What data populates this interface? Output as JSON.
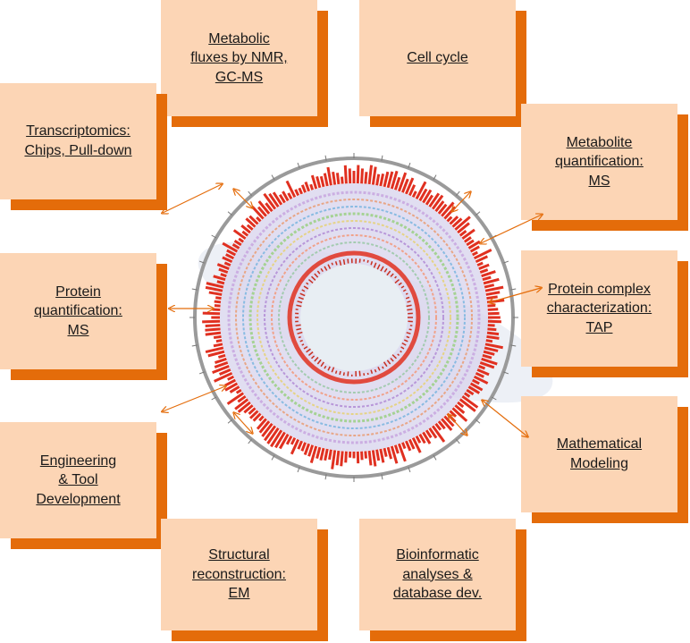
{
  "boxes": [
    {
      "id": "metabolic-fluxes",
      "label": "Metabolic\nfluxes by NMR,\nGC-MS"
    },
    {
      "id": "cell-cycle",
      "label": "Cell cycle"
    },
    {
      "id": "transcriptomics",
      "label": "Transcriptomics:\nChips, Pull-down"
    },
    {
      "id": "metabolite-quantification",
      "label": "Metabolite\nquantification:\nMS"
    },
    {
      "id": "protein-quantification",
      "label": "Protein\nquantification:\nMS"
    },
    {
      "id": "protein-complex",
      "label": "Protein complex\ncharacterization:\nTAP"
    },
    {
      "id": "engineering",
      "label": "Engineering\n& Tool\nDevelopment"
    },
    {
      "id": "mathematical-modeling",
      "label": "Mathematical\nModeling"
    },
    {
      "id": "structural-reconstruction",
      "label": "Structural\nreconstruction:\nEM"
    },
    {
      "id": "bioinformatic",
      "label": "Bioinformatic\nanalyses &\ndatabase dev."
    }
  ],
  "colors": {
    "box_fill": "#fcd5b5",
    "box_shadow": "#e46c0a",
    "arrow": "#e46c0a",
    "genome_outer_ring": "#9a9a9a",
    "genome_red": "#e03020",
    "genome_lavender": "#d9d6ee",
    "genome_green": "#9fd08a"
  }
}
